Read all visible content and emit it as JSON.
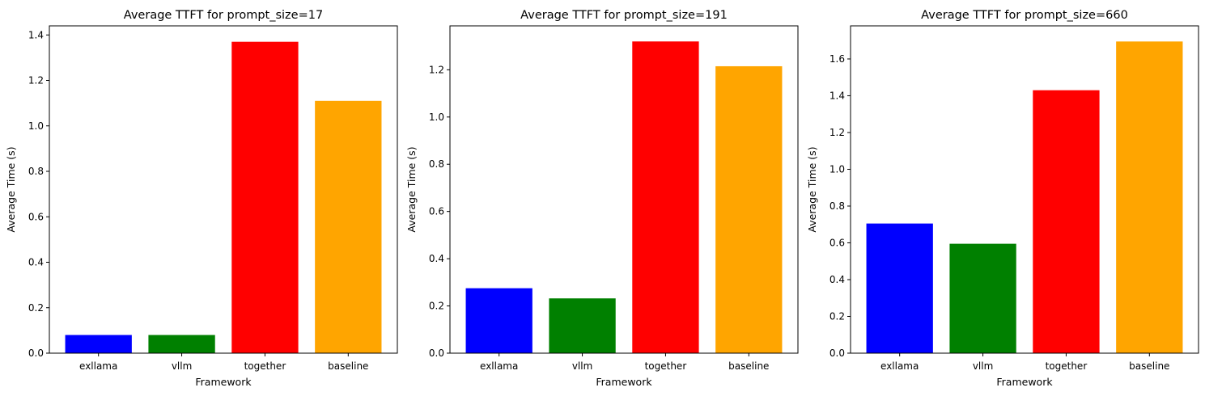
{
  "chart_data": [
    {
      "type": "bar",
      "title": "Average TTFT for prompt_size=17",
      "xlabel": "Framework",
      "ylabel": "Average Time (s)",
      "categories": [
        "exllama",
        "vllm",
        "together",
        "baseline"
      ],
      "values": [
        0.08,
        0.08,
        1.37,
        1.11
      ],
      "colors": [
        "#0000ff",
        "#008000",
        "#ff0000",
        "#ffa500"
      ],
      "ylim": [
        0,
        1.44
      ],
      "yticks": [
        "0.0",
        "0.2",
        "0.4",
        "0.6",
        "0.8",
        "1.0",
        "1.2",
        "1.4"
      ],
      "grid": false
    },
    {
      "type": "bar",
      "title": "Average TTFT for prompt_size=191",
      "xlabel": "Framework",
      "ylabel": "Average Time (s)",
      "categories": [
        "exllama",
        "vllm",
        "together",
        "baseline"
      ],
      "values": [
        0.275,
        0.232,
        1.32,
        1.215
      ],
      "colors": [
        "#0000ff",
        "#008000",
        "#ff0000",
        "#ffa500"
      ],
      "ylim": [
        0,
        1.386
      ],
      "yticks": [
        "0.0",
        "0.2",
        "0.4",
        "0.6",
        "0.8",
        "1.0",
        "1.2"
      ],
      "grid": false
    },
    {
      "type": "bar",
      "title": "Average TTFT for prompt_size=660",
      "xlabel": "Framework",
      "ylabel": "Average Time (s)",
      "categories": [
        "exllama",
        "vllm",
        "together",
        "baseline"
      ],
      "values": [
        0.705,
        0.595,
        1.43,
        1.695
      ],
      "colors": [
        "#0000ff",
        "#008000",
        "#ff0000",
        "#ffa500"
      ],
      "ylim": [
        0,
        1.78
      ],
      "yticks": [
        "0.0",
        "0.2",
        "0.4",
        "0.6",
        "0.8",
        "1.0",
        "1.2",
        "1.4",
        "1.6"
      ],
      "grid": false
    }
  ]
}
